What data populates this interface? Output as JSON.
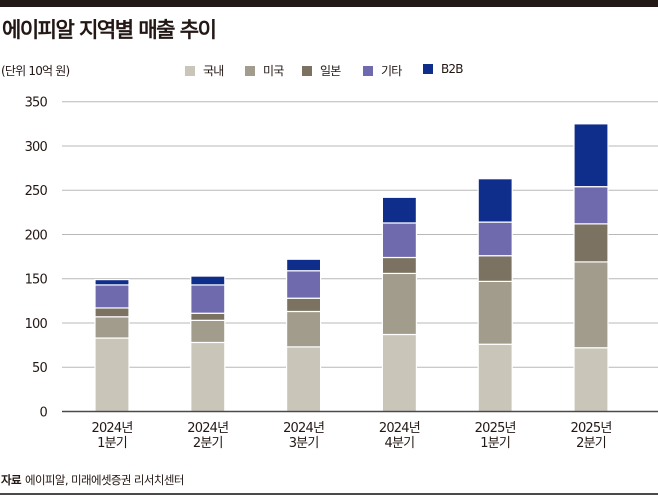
{
  "header": {
    "title": "에이피알 지역별 매출 추이",
    "unit": "(단위 10억 원)"
  },
  "footer": {
    "source_label": "자료",
    "source_text": "에이피알, 미래에셋증권 리서치센터"
  },
  "chart_data": {
    "type": "bar",
    "stacked": true,
    "title": "에이피알 지역별 매출 추이",
    "xlabel": "",
    "ylabel": "(단위 10억 원)",
    "ylim": [
      0,
      350
    ],
    "yticks": [
      0,
      50,
      100,
      150,
      200,
      250,
      300,
      350
    ],
    "grid": true,
    "legend_position": "top-center",
    "categories": [
      [
        "2024년",
        "1분기"
      ],
      [
        "2024년",
        "2분기"
      ],
      [
        "2024년",
        "3분기"
      ],
      [
        "2024년",
        "4분기"
      ],
      [
        "2025년",
        "1분기"
      ],
      [
        "2025년",
        "2분기"
      ]
    ],
    "series": [
      {
        "name": "국내",
        "color": "#c9c5b9",
        "values": [
          83,
          78,
          73,
          87,
          76,
          72
        ]
      },
      {
        "name": "미국",
        "color": "#a19c8c",
        "values": [
          24,
          25,
          40,
          69,
          71,
          97
        ]
      },
      {
        "name": "일본",
        "color": "#7b7261",
        "values": [
          10,
          8,
          15,
          18,
          29,
          43
        ]
      },
      {
        "name": "기타",
        "color": "#6e6aad",
        "values": [
          26,
          32,
          31,
          39,
          38,
          42
        ]
      },
      {
        "name": "B2B",
        "color": "#0f2d8a",
        "values": [
          6,
          10,
          13,
          29,
          49,
          71
        ]
      }
    ]
  }
}
